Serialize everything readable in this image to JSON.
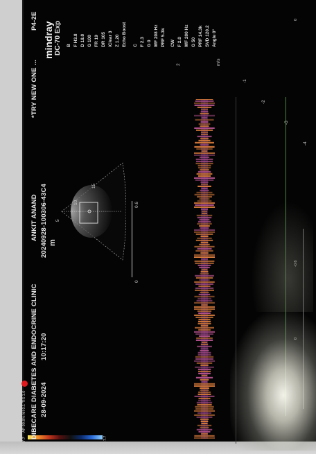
{
  "monitor": {
    "clinic": "DIBECARE DIABETES AND ENDOCRINE CLINIC",
    "date": "28-09-2024",
    "time": "10:17:20",
    "patient_name": "ANKIT ANAND",
    "patient_id": "20240928-100306-43C4",
    "banner": "*TRY NEW ONE ...",
    "probe": "P4-2E",
    "brand": "mindray",
    "model": "DC-70 Exp",
    "top_params": "AP 99.8% MI 0.1 TIS 1.0",
    "mode_b_params": [
      "B",
      "F H3.8",
      "D 18.0",
      "G 100",
      "FR 19",
      "DR 105",
      "iClear 3",
      "Z 1.20",
      "Echo Boost"
    ],
    "mode_c_params": [
      "C",
      "F 2.3",
      "G 0",
      "WF 208 Hz",
      "PRF 5.3k"
    ],
    "mode_cw_params": [
      "CW",
      "F 2.0",
      "WF 200 Hz",
      "G 50",
      "PRF 14.3k",
      "SVD 120.2",
      "Angle 0°"
    ],
    "colorbar_top": "7.7",
    "colorbar_bottom": "-7.7",
    "depth_scale_start": "0",
    "depth_scale_end": "0.6",
    "sector_ticks": [
      "5",
      "10",
      "15"
    ],
    "marker_m": "m",
    "velocity_unit": "m/s",
    "velocity_ticks": [
      "-1",
      "-2",
      "-3",
      "-4"
    ],
    "speed_label": "2",
    "time_marker_1": "0",
    "time_marker_2": "-0.6",
    "right_small_label": "0",
    "spectrum_color": "#d77a3a",
    "screen_color": "#040404"
  }
}
